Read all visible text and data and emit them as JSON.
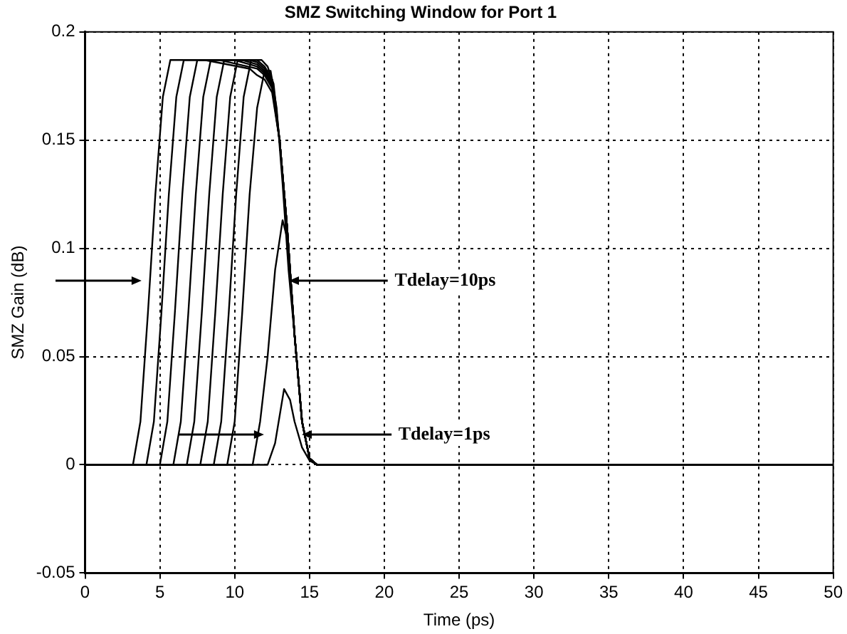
{
  "chart_data": {
    "type": "line",
    "title": "SMZ Switching Window for Port 1",
    "xlabel": "Time (ps)",
    "ylabel": "SMZ Gain (dB)",
    "xlim": [
      0,
      50
    ],
    "xticks": [
      0,
      5,
      10,
      15,
      20,
      25,
      30,
      35,
      40,
      45,
      50
    ],
    "ylim": [
      -0.05,
      0.2
    ],
    "yticks": [
      -0.05,
      0,
      0.05,
      0.1,
      0.15,
      0.2
    ],
    "grid": true,
    "legend": false,
    "marker": "none",
    "line_style": "solid",
    "annotations": [
      "Tdelay=10ps",
      "Tdelay=1ps"
    ],
    "series": [
      {
        "color": "#000000",
        "x": [
          0,
          3.2,
          3.7,
          4.2,
          4.7,
          5.2,
          5.7,
          8,
          11,
          11.5,
          12,
          12.5,
          13,
          13.5,
          14,
          14.5,
          15,
          15.5,
          50
        ],
        "values": [
          0,
          0,
          0.02,
          0.07,
          0.125,
          0.17,
          0.187,
          0.187,
          0.183,
          0.18,
          0.178,
          0.172,
          0.15,
          0.11,
          0.06,
          0.02,
          0.003,
          0,
          0
        ]
      },
      {
        "color": "#000000",
        "x": [
          0,
          4.1,
          4.6,
          5.1,
          5.6,
          6.1,
          6.6,
          9,
          11.5,
          12,
          12.5,
          13,
          13.5,
          14,
          14.5,
          15,
          15.5,
          50
        ],
        "values": [
          0,
          0,
          0.02,
          0.07,
          0.125,
          0.17,
          0.187,
          0.187,
          0.183,
          0.18,
          0.174,
          0.15,
          0.11,
          0.06,
          0.02,
          0.003,
          0,
          0
        ]
      },
      {
        "color": "#000000",
        "x": [
          0,
          5,
          5.5,
          6,
          6.5,
          7,
          7.5,
          10,
          11.5,
          12,
          12.5,
          13,
          13.5,
          14,
          14.5,
          15,
          15.5,
          50
        ],
        "values": [
          0,
          0,
          0.02,
          0.07,
          0.125,
          0.17,
          0.187,
          0.187,
          0.184,
          0.181,
          0.175,
          0.15,
          0.11,
          0.06,
          0.02,
          0.003,
          0,
          0
        ]
      },
      {
        "color": "#000000",
        "x": [
          0,
          5.9,
          6.4,
          6.9,
          7.4,
          7.9,
          8.4,
          10.5,
          11.5,
          12,
          12.5,
          13,
          13.5,
          14,
          14.5,
          15,
          15.5,
          50
        ],
        "values": [
          0,
          0,
          0.02,
          0.07,
          0.125,
          0.17,
          0.187,
          0.187,
          0.185,
          0.182,
          0.176,
          0.15,
          0.11,
          0.06,
          0.02,
          0.003,
          0,
          0
        ]
      },
      {
        "color": "#000000",
        "x": [
          0,
          6.8,
          7.3,
          7.8,
          8.3,
          8.8,
          9.3,
          11,
          11.5,
          12,
          12.5,
          13,
          13.5,
          14,
          14.5,
          15,
          15.5,
          50
        ],
        "values": [
          0,
          0,
          0.02,
          0.07,
          0.125,
          0.17,
          0.187,
          0.187,
          0.186,
          0.183,
          0.177,
          0.15,
          0.11,
          0.06,
          0.02,
          0.003,
          0,
          0
        ]
      },
      {
        "color": "#000000",
        "x": [
          0,
          7.7,
          8.2,
          8.7,
          9.2,
          9.7,
          10.2,
          11.5,
          12,
          12.5,
          13,
          13.5,
          14,
          14.5,
          15,
          15.5,
          50
        ],
        "values": [
          0,
          0,
          0.02,
          0.07,
          0.125,
          0.17,
          0.187,
          0.187,
          0.184,
          0.178,
          0.15,
          0.11,
          0.06,
          0.02,
          0.003,
          0,
          0
        ]
      },
      {
        "color": "#000000",
        "x": [
          0,
          8.6,
          9.1,
          9.6,
          10.1,
          10.6,
          11.1,
          11.8,
          12.2,
          12.6,
          13,
          13.5,
          14,
          14.5,
          15,
          15.5,
          50
        ],
        "values": [
          0,
          0,
          0.02,
          0.07,
          0.125,
          0.17,
          0.187,
          0.187,
          0.184,
          0.176,
          0.15,
          0.11,
          0.06,
          0.02,
          0.003,
          0,
          0
        ]
      },
      {
        "color": "#000000",
        "x": [
          0,
          9.5,
          10,
          10.5,
          11,
          11.5,
          12,
          12.4,
          12.8,
          13.2,
          13.6,
          14,
          14.5,
          15,
          15.5,
          50
        ],
        "values": [
          0,
          0,
          0.02,
          0.07,
          0.125,
          0.165,
          0.182,
          0.182,
          0.165,
          0.13,
          0.09,
          0.06,
          0.02,
          0.003,
          0,
          0
        ]
      },
      {
        "color": "#000000",
        "x": [
          0,
          11.2,
          11.7,
          12.2,
          12.7,
          13.2,
          13.5,
          14,
          14.5,
          15,
          15.5,
          50
        ],
        "values": [
          0,
          0,
          0.02,
          0.05,
          0.09,
          0.113,
          0.105,
          0.06,
          0.02,
          0.003,
          0,
          0
        ]
      },
      {
        "color": "#000000",
        "x": [
          0,
          12.2,
          12.7,
          13.3,
          13.7,
          14,
          14.5,
          15,
          15.5,
          50
        ],
        "values": [
          0,
          0,
          0.01,
          0.035,
          0.03,
          0.02,
          0.008,
          0.002,
          0,
          0
        ]
      }
    ]
  }
}
